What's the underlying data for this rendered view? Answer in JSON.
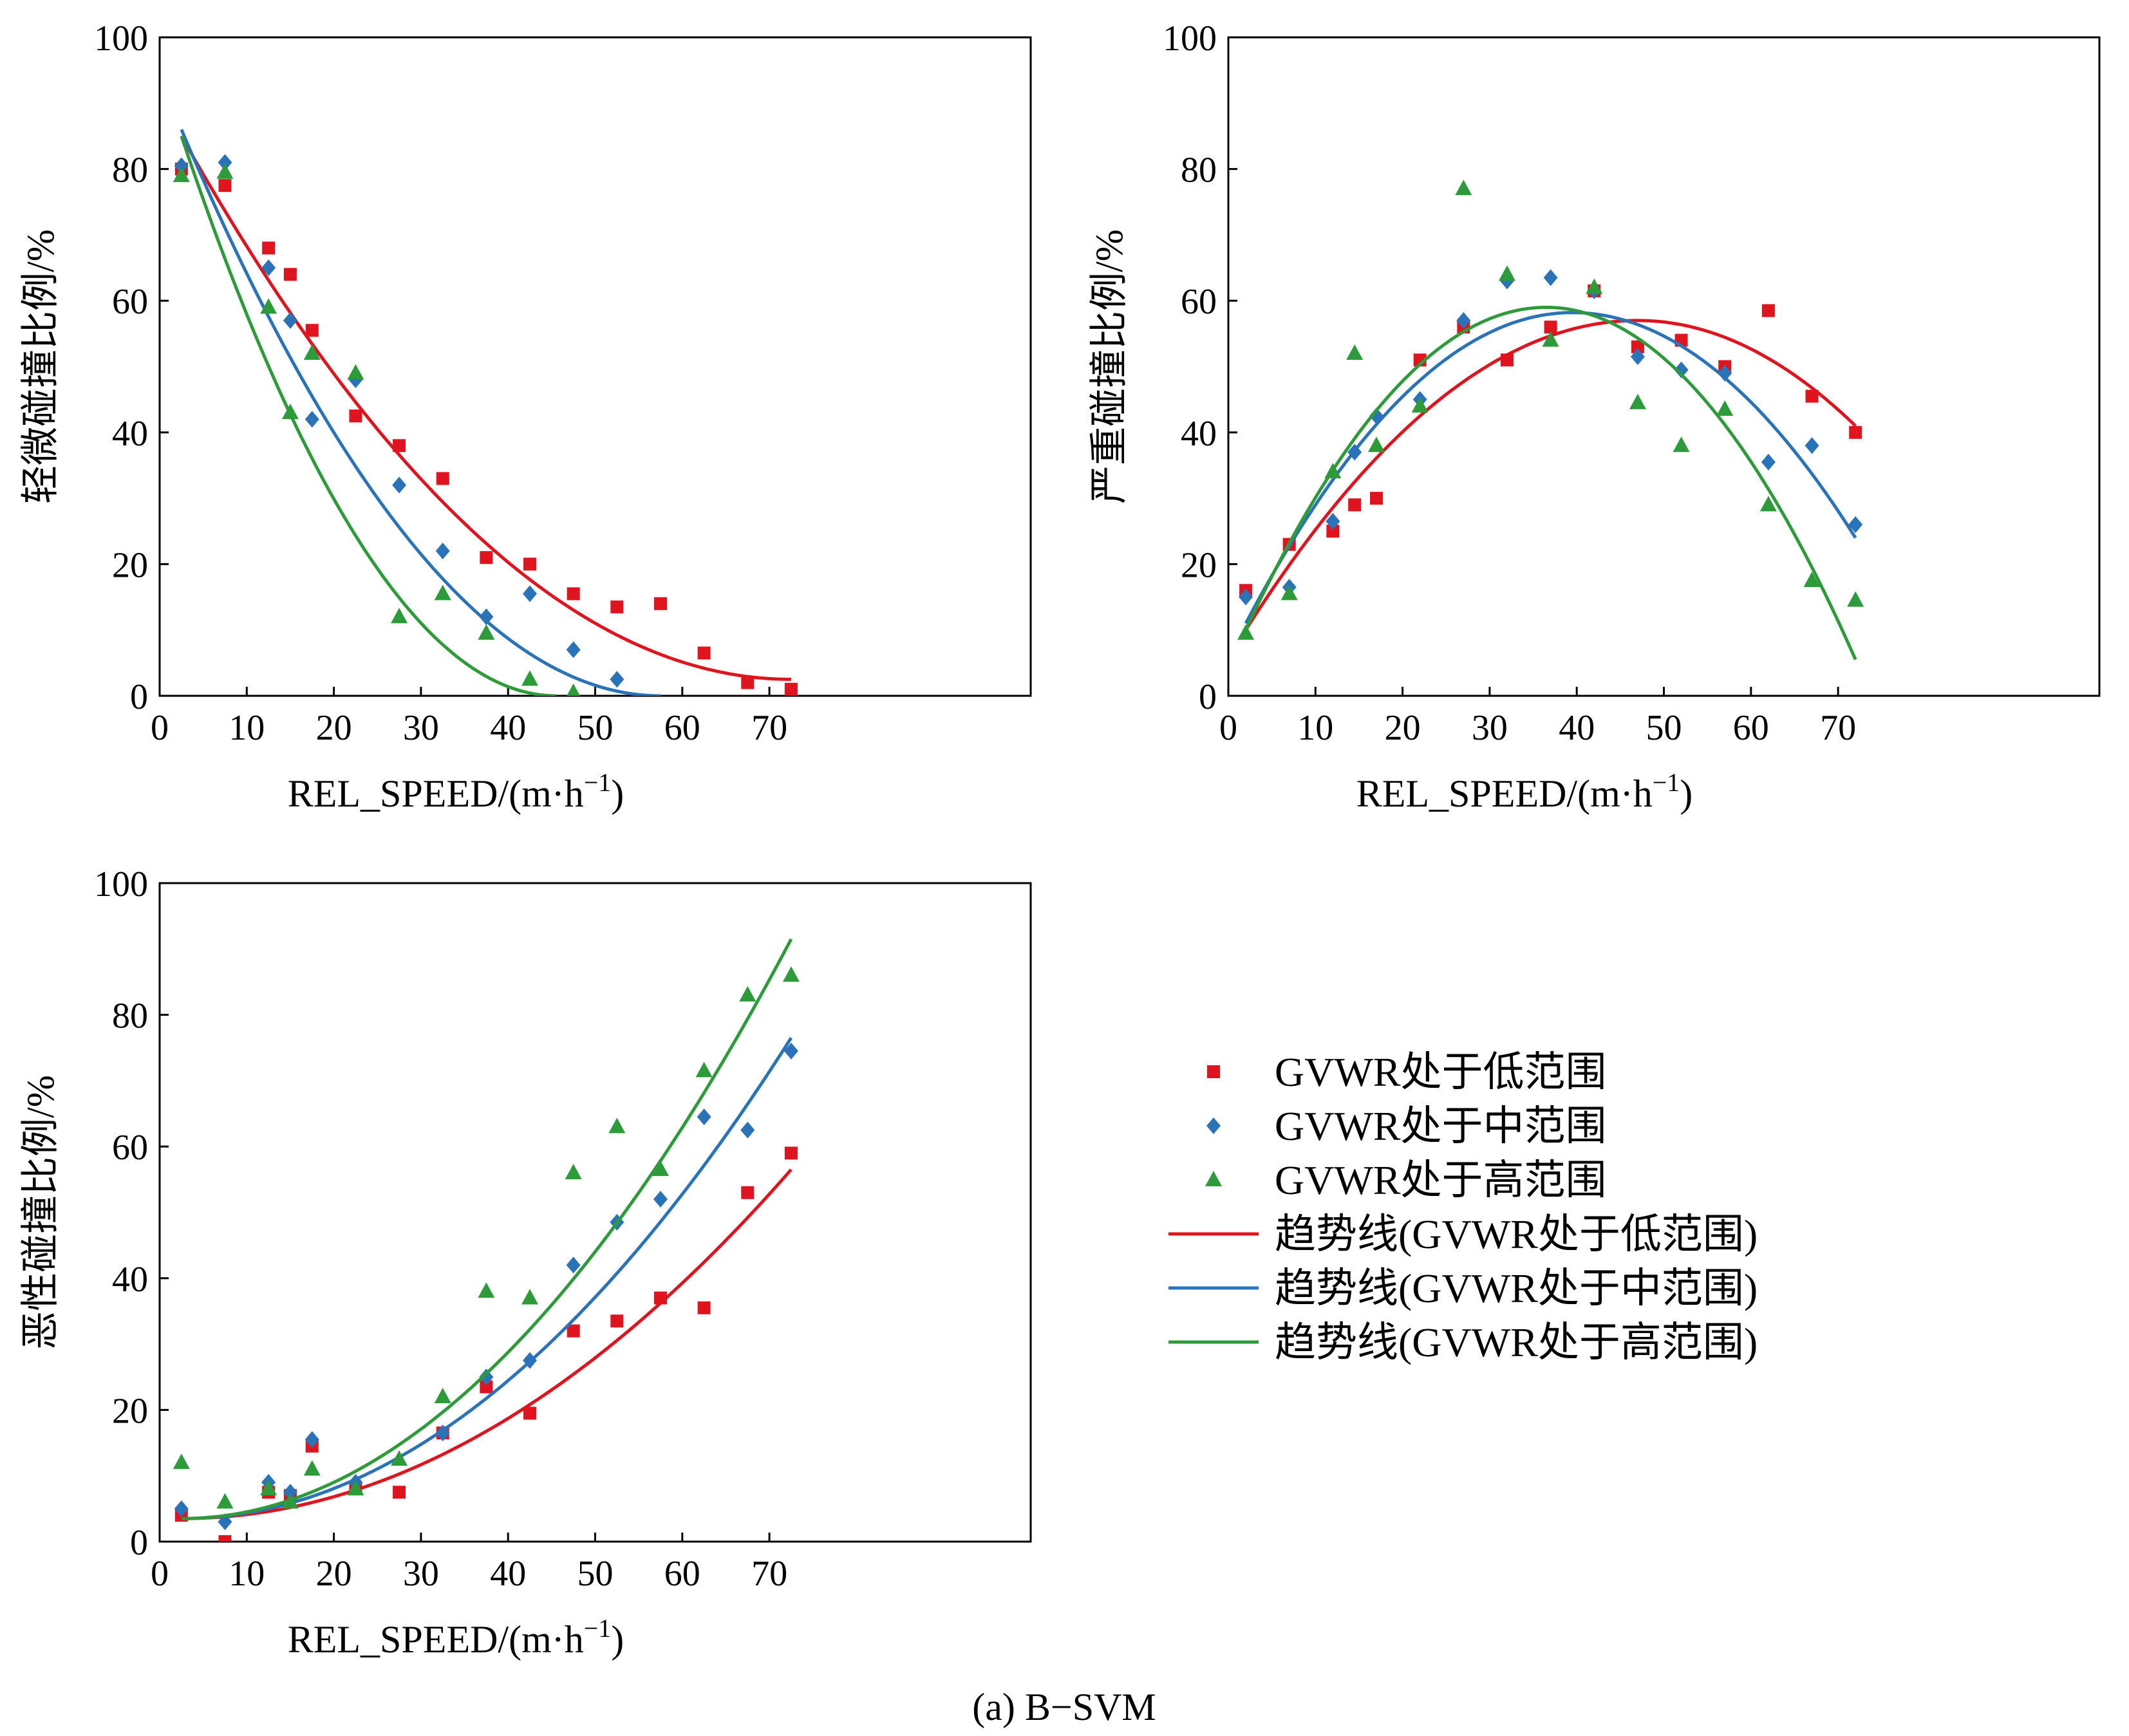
{
  "caption": "(a) B−SVM",
  "colors": {
    "low": "#e0141e",
    "mid": "#2b73b9",
    "high": "#2d9b3a"
  },
  "legend": {
    "items": [
      {
        "key": "low",
        "kind": "square",
        "label": "GVWR处于低范围"
      },
      {
        "key": "mid",
        "kind": "diamond",
        "label": "GVWR处于中范围"
      },
      {
        "key": "high",
        "kind": "triangle",
        "label": "GVWR处于高范围"
      },
      {
        "key": "low",
        "kind": "line",
        "label": "趋势线(GVWR处于低范围)"
      },
      {
        "key": "mid",
        "kind": "line",
        "label": "趋势线(GVWR处于中范围)"
      },
      {
        "key": "high",
        "kind": "line",
        "label": "趋势线(GVWR处于高范围)"
      }
    ]
  },
  "chart_data": [
    {
      "type": "scatter",
      "xlabel": "REL_SPEED/(m·h",
      "xlabel_sup": "−1",
      "xlabel_close": ")",
      "ylabel": "轻微碰撞比例/%",
      "xlim": [
        0,
        100
      ],
      "ylim": [
        0,
        100
      ],
      "xticks": [
        0,
        10,
        20,
        30,
        40,
        50,
        60,
        70
      ],
      "yticks": [
        0,
        20,
        40,
        60,
        80,
        100
      ],
      "series": [
        {
          "key": "low",
          "marker": "square",
          "x": [
            2.5,
            7.5,
            12.5,
            15,
            17.5,
            22.5,
            27.5,
            32.5,
            37.5,
            42.5,
            47.5,
            52.5,
            57.5,
            62.5,
            67.5,
            72.5
          ],
          "y": [
            80,
            77.5,
            68,
            64,
            55.5,
            42.5,
            38,
            33,
            21,
            20,
            15.5,
            13.5,
            14,
            6.5,
            2,
            1
          ],
          "trend": {
            "x_range": [
              2.5,
              72.5
            ],
            "y_start": 85,
            "y_end": 2.5
          }
        },
        {
          "key": "mid",
          "marker": "diamond",
          "x": [
            2.5,
            7.5,
            12.5,
            15,
            17.5,
            22.5,
            27.5,
            32.5,
            37.5,
            42.5,
            47.5,
            52.5
          ],
          "y": [
            80.5,
            81,
            65,
            57,
            42,
            48,
            32,
            22,
            12,
            15.5,
            7,
            2.5
          ],
          "trend": {
            "x_range": [
              2.5,
              57.5
            ],
            "y_start": 86,
            "y_end": 0
          }
        },
        {
          "key": "high",
          "marker": "triangle",
          "x": [
            2.5,
            7.5,
            12.5,
            15,
            17.5,
            22.5,
            27.5,
            32.5,
            37.5,
            42.5,
            47.5
          ],
          "y": [
            79,
            79.5,
            59,
            43,
            52,
            49,
            12,
            15.5,
            9.5,
            2.5,
            0.5
          ],
          "trend": {
            "x_range": [
              2.5,
              45.5
            ],
            "y_start": 85,
            "y_end": 0
          }
        }
      ]
    },
    {
      "type": "scatter",
      "xlabel": "REL_SPEED/(m·h",
      "xlabel_sup": "−1",
      "xlabel_close": ")",
      "ylabel": "严重碰撞比例/%",
      "xlim": [
        0,
        100
      ],
      "ylim": [
        0,
        100
      ],
      "xticks": [
        0,
        10,
        20,
        30,
        40,
        50,
        60,
        70
      ],
      "yticks": [
        0,
        20,
        40,
        60,
        80,
        100
      ],
      "series": [
        {
          "key": "low",
          "marker": "square",
          "x": [
            2,
            7,
            12,
            14.5,
            17,
            22,
            27,
            32,
            37,
            42,
            47,
            52,
            57,
            62,
            67,
            72
          ],
          "y": [
            16,
            23,
            25,
            29,
            30,
            51,
            56,
            51,
            56,
            61.5,
            53,
            54,
            50,
            58.5,
            45.5,
            40
          ],
          "trend": {
            "x_range": [
              2,
              72
            ],
            "y_start": 10,
            "y_end": 41,
            "x_peak": 47,
            "y_peak": 57
          }
        },
        {
          "key": "mid",
          "marker": "diamond",
          "x": [
            2,
            7,
            12,
            14.5,
            17,
            22,
            27,
            32,
            37,
            42,
            47,
            52,
            57,
            62,
            67,
            72
          ],
          "y": [
            15,
            16.5,
            26.5,
            37,
            42.5,
            45,
            57,
            63,
            63.5,
            61.5,
            51.5,
            49.5,
            49,
            35.5,
            38,
            26
          ],
          "trend": {
            "x_range": [
              2,
              72
            ],
            "y_start": 11,
            "y_end": 24,
            "x_peak": 39.5,
            "y_peak": 58.2
          }
        },
        {
          "key": "high",
          "marker": "triangle",
          "x": [
            2,
            7,
            12,
            14.5,
            17,
            22,
            27,
            32,
            37,
            42,
            47,
            52,
            57,
            62,
            67,
            72
          ],
          "y": [
            9.5,
            15.5,
            34,
            52,
            38,
            44,
            77,
            64,
            54,
            62,
            44.5,
            38,
            43.5,
            29,
            17.5,
            14.5
          ],
          "trend": {
            "x_range": [
              2,
              72
            ],
            "y_start": 10,
            "y_end": 5.5,
            "x_peak": 36.5,
            "y_peak": 59
          }
        }
      ]
    },
    {
      "type": "scatter",
      "xlabel": "REL_SPEED/(m·h",
      "xlabel_sup": "−1",
      "xlabel_close": ")",
      "ylabel": "恶性碰撞比例/%",
      "xlim": [
        0,
        100
      ],
      "ylim": [
        0,
        100
      ],
      "xticks": [
        0,
        10,
        20,
        30,
        40,
        50,
        60,
        70
      ],
      "yticks": [
        0,
        20,
        40,
        60,
        80,
        100
      ],
      "series": [
        {
          "key": "low",
          "marker": "square",
          "x": [
            2.5,
            7.5,
            12.5,
            15,
            17.5,
            22.5,
            27.5,
            32.5,
            37.5,
            42.5,
            47.5,
            52.5,
            57.5,
            62.5,
            67.5,
            72.5
          ],
          "y": [
            4,
            0,
            7.5,
            7,
            14.5,
            8,
            7.5,
            16.5,
            23.5,
            19.5,
            32,
            33.5,
            37,
            35.5,
            53,
            59
          ],
          "trend": {
            "x_range": [
              2.5,
              72.5
            ],
            "y_start": 3.5,
            "y_end": 56.5
          }
        },
        {
          "key": "mid",
          "marker": "diamond",
          "x": [
            2.5,
            7.5,
            12.5,
            15,
            17.5,
            22.5,
            32.5,
            37.5,
            42.5,
            47.5,
            52.5,
            57.5,
            62.5,
            67.5,
            72.5
          ],
          "y": [
            5,
            3,
            9,
            7.5,
            15.5,
            9,
            16.5,
            25,
            27.5,
            42,
            48.5,
            52,
            64.5,
            62.5,
            74.5
          ],
          "trend": {
            "x_range": [
              2.5,
              72.5
            ],
            "y_start": 3.5,
            "y_end": 76.5
          }
        },
        {
          "key": "high",
          "marker": "triangle",
          "x": [
            2.5,
            7.5,
            12.5,
            15,
            17.5,
            22.5,
            27.5,
            32.5,
            37.5,
            42.5,
            47.5,
            52.5,
            57.5,
            62.5,
            67.5,
            72.5
          ],
          "y": [
            12,
            6,
            8,
            6,
            11,
            8,
            12.5,
            22,
            38,
            37,
            56,
            63,
            56.5,
            71.5,
            83,
            86
          ],
          "trend": {
            "x_range": [
              2.5,
              72.5
            ],
            "y_start": 3.5,
            "y_end": 91.5
          }
        }
      ]
    }
  ]
}
